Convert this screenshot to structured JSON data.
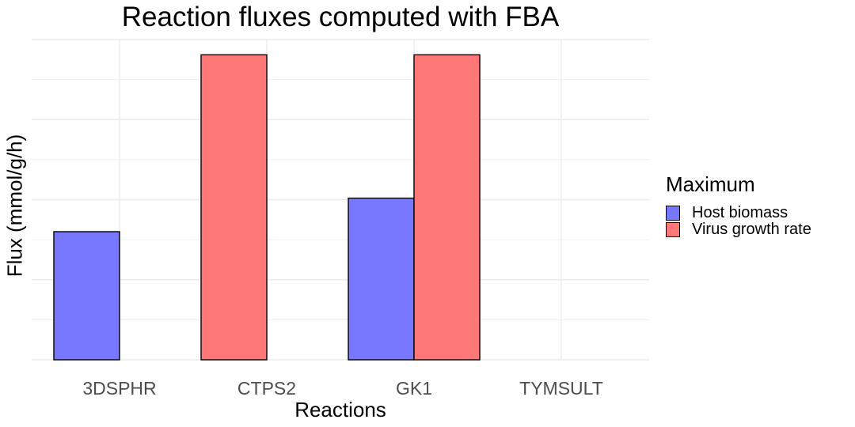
{
  "chart_data": {
    "type": "bar",
    "title": "Reaction fluxes computed with FBA",
    "xlabel": "Reactions",
    "ylabel": "Flux (mmol/g/h)",
    "categories": [
      "3DSPHR",
      "CTPS2",
      "GK1",
      "TYMSULT"
    ],
    "series": [
      {
        "name": "Host biomass",
        "color": "#7878ff",
        "values": [
          0.42,
          0,
          0.53,
          0
        ]
      },
      {
        "name": "Virus growth rate",
        "color": "#ff7878",
        "values": [
          0,
          1.0,
          1.0,
          0
        ]
      }
    ],
    "ylim": [
      0,
      1.05
    ],
    "grid": true,
    "y_tick_labels_shown": false,
    "legend": {
      "title": "Maximum",
      "position": "right"
    }
  }
}
